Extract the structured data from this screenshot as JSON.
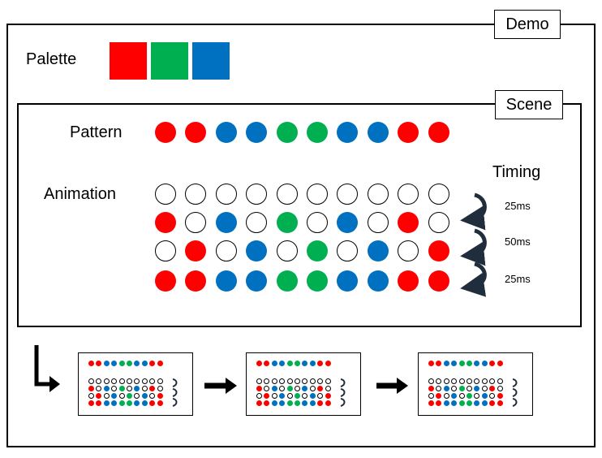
{
  "demo": {
    "label": "Demo"
  },
  "palette": {
    "label": "Palette",
    "colors": [
      "#ff0000",
      "#00b050",
      "#0070c0"
    ]
  },
  "scene": {
    "label": "Scene",
    "pattern": {
      "label": "Pattern",
      "sequence": [
        "red",
        "red",
        "blue",
        "blue",
        "green",
        "green",
        "blue",
        "blue",
        "red",
        "red"
      ]
    },
    "animation": {
      "label": "Animation",
      "frames": [
        [
          "empty",
          "empty",
          "empty",
          "empty",
          "empty",
          "empty",
          "empty",
          "empty",
          "empty",
          "empty"
        ],
        [
          "red",
          "empty",
          "blue",
          "empty",
          "green",
          "empty",
          "blue",
          "empty",
          "red",
          "empty"
        ],
        [
          "empty",
          "red",
          "empty",
          "blue",
          "empty",
          "green",
          "empty",
          "blue",
          "empty",
          "red"
        ],
        [
          "red",
          "red",
          "blue",
          "blue",
          "green",
          "green",
          "blue",
          "blue",
          "red",
          "red"
        ]
      ]
    },
    "timing": {
      "label": "Timing",
      "steps": [
        "25ms",
        "50ms",
        "25ms"
      ]
    }
  },
  "color_map": {
    "red": "#ff0000",
    "green": "#00b050",
    "blue": "#0070c0"
  },
  "icons": {
    "loop_arrow": "curved-return-arrow-icon",
    "start_arrow": "bent-down-right-arrow-icon",
    "flow_arrow": "right-arrow-icon"
  },
  "thumbnails": {
    "count": 3
  }
}
